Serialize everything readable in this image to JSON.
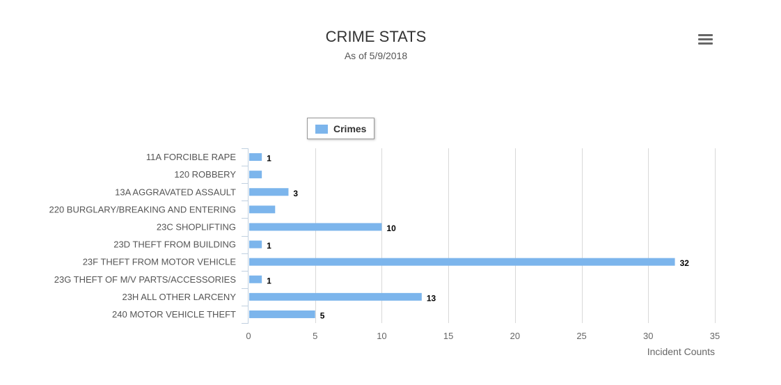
{
  "header": {
    "title": "CRIME STATS",
    "subtitle": "As of 5/9/2018",
    "menu_icon": "hamburger-menu-icon"
  },
  "colors": {
    "bar": "#7cb5ec",
    "grid": "#d8d8d8",
    "axis": "#c0d0e0"
  },
  "chart_data": {
    "type": "bar",
    "orientation": "horizontal",
    "title": "CRIME STATS",
    "subtitle": "As of 5/9/2018",
    "xlabel": "Incident Counts",
    "ylabel": "",
    "xlim": [
      0,
      35
    ],
    "x_ticks": [
      0,
      5,
      10,
      15,
      20,
      25,
      30,
      35
    ],
    "grid": true,
    "legend": {
      "position": "top-center",
      "entries": [
        "Crimes"
      ]
    },
    "categories": [
      "11A FORCIBLE RAPE",
      "120 ROBBERY",
      "13A AGGRAVATED ASSAULT",
      "220 BURGLARY/BREAKING AND ENTERING",
      "23C SHOPLIFTING",
      "23D THEFT FROM BUILDING",
      "23F THEFT FROM MOTOR VEHICLE",
      "23G THEFT OF M/V PARTS/ACCESSORIES",
      "23H ALL OTHER LARCENY",
      "240 MOTOR VEHICLE THEFT"
    ],
    "series": [
      {
        "name": "Crimes",
        "values": [
          1,
          1,
          3,
          2,
          10,
          1,
          32,
          1,
          13,
          5
        ],
        "data_labels": [
          "1",
          "",
          "3",
          "",
          "10",
          "1",
          "32",
          "1",
          "13",
          "5"
        ]
      }
    ]
  }
}
